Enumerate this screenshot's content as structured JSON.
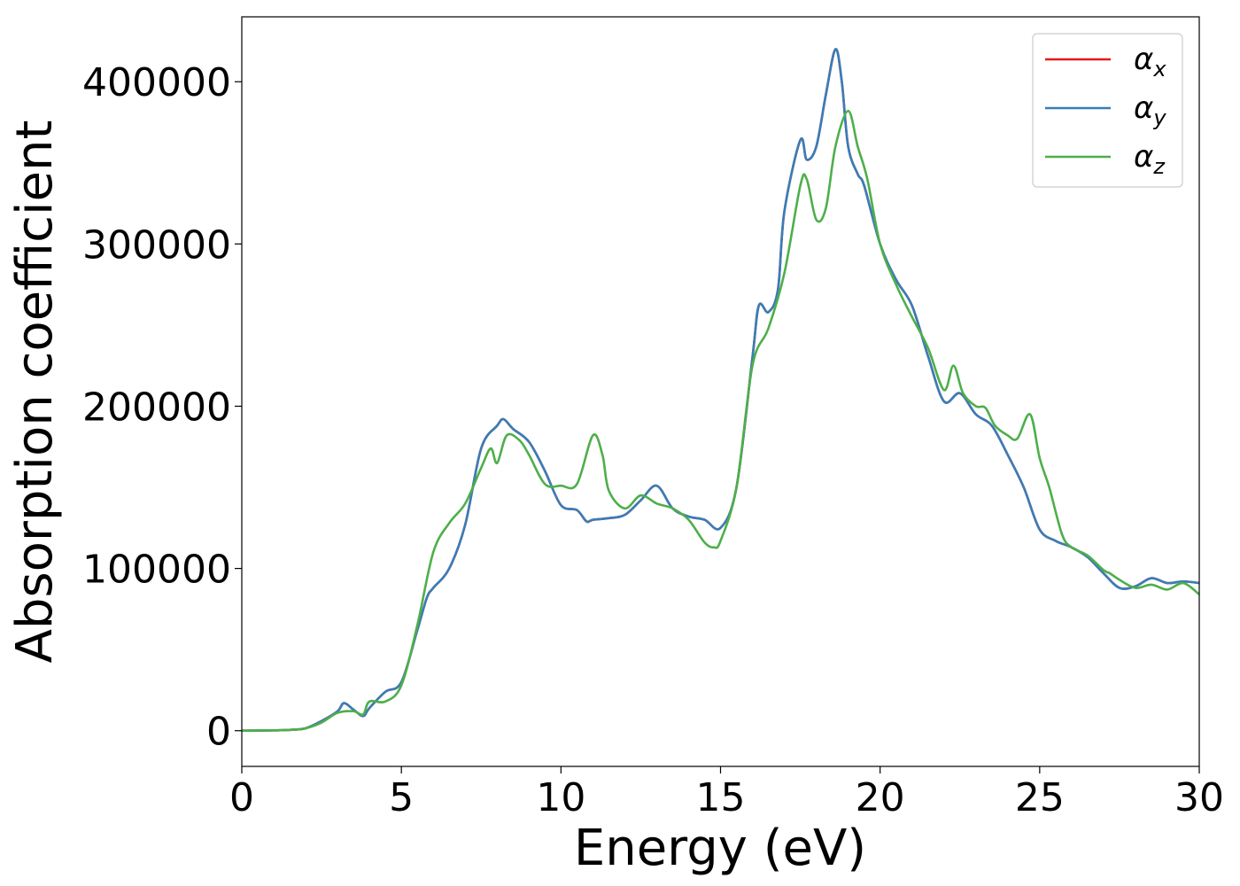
{
  "chart_data": {
    "type": "line",
    "title": "",
    "xlabel": "Energy (eV)",
    "ylabel": "Absorption coefficient",
    "xlim": [
      0,
      30
    ],
    "ylim": [
      -22000,
      440000
    ],
    "xticks": [
      0,
      5,
      10,
      15,
      20,
      25,
      30
    ],
    "xtick_labels": [
      "0",
      "5",
      "10",
      "15",
      "20",
      "25",
      "30"
    ],
    "yticks": [
      0,
      100000,
      200000,
      300000,
      400000
    ],
    "ytick_labels": [
      "0",
      "100000",
      "200000",
      "300000",
      "400000"
    ],
    "grid": false,
    "legend_position": "top-right",
    "series": [
      {
        "name": "α",
        "subscript": "x",
        "color": "#e41a1c",
        "x": [
          0,
          1,
          1.5,
          2,
          2.5,
          3,
          3.2,
          3.5,
          3.8,
          4,
          4.5,
          5,
          5.5,
          5.8,
          6,
          6.5,
          7,
          7.5,
          8,
          8.2,
          8.5,
          9,
          9.5,
          10,
          10.5,
          10.8,
          11,
          11.5,
          12,
          12.5,
          13,
          13.5,
          14,
          14.5,
          15,
          15.5,
          16,
          16.2,
          16.5,
          16.8,
          17,
          17.5,
          17.7,
          18,
          18.3,
          18.6,
          18.8,
          19,
          19.3,
          19.5,
          20,
          20.5,
          21,
          21.5,
          22,
          22.5,
          23,
          23.5,
          24,
          24.5,
          25,
          25.5,
          26,
          26.5,
          27,
          27.5,
          28,
          28.5,
          29,
          29.5,
          30
        ],
        "y": [
          0,
          200,
          500,
          1500,
          6000,
          12000,
          17000,
          13000,
          9000,
          14000,
          24000,
          30000,
          62000,
          82000,
          88000,
          100000,
          127000,
          174000,
          188000,
          192000,
          186000,
          178000,
          160000,
          139000,
          136000,
          129000,
          130000,
          131000,
          133000,
          142000,
          151000,
          137000,
          132000,
          130000,
          125000,
          150000,
          230000,
          262000,
          258000,
          272000,
          320000,
          364000,
          352000,
          360000,
          392000,
          420000,
          400000,
          360000,
          343000,
          336000,
          300000,
          278000,
          262000,
          231000,
          203000,
          208000,
          195000,
          188000,
          170000,
          150000,
          124000,
          117000,
          113000,
          107000,
          97000,
          88000,
          89000,
          94000,
          91000,
          92000,
          91000
        ]
      },
      {
        "name": "α",
        "subscript": "y",
        "color": "#377eb8",
        "x": [
          0,
          1,
          1.5,
          2,
          2.5,
          3,
          3.2,
          3.5,
          3.8,
          4,
          4.5,
          5,
          5.5,
          5.8,
          6,
          6.5,
          7,
          7.5,
          8,
          8.2,
          8.5,
          9,
          9.5,
          10,
          10.5,
          10.8,
          11,
          11.5,
          12,
          12.5,
          13,
          13.5,
          14,
          14.5,
          15,
          15.5,
          16,
          16.2,
          16.5,
          16.8,
          17,
          17.5,
          17.7,
          18,
          18.3,
          18.6,
          18.8,
          19,
          19.3,
          19.5,
          20,
          20.5,
          21,
          21.5,
          22,
          22.5,
          23,
          23.5,
          24,
          24.5,
          25,
          25.5,
          26,
          26.5,
          27,
          27.5,
          28,
          28.5,
          29,
          29.5,
          30
        ],
        "y": [
          0,
          200,
          500,
          1500,
          6000,
          12000,
          17000,
          13000,
          9000,
          14000,
          24000,
          30000,
          62000,
          82000,
          88000,
          100000,
          127000,
          174000,
          188000,
          192000,
          186000,
          178000,
          160000,
          139000,
          136000,
          129000,
          130000,
          131000,
          133000,
          142000,
          151000,
          137000,
          132000,
          130000,
          125000,
          150000,
          230000,
          262000,
          258000,
          272000,
          320000,
          364000,
          352000,
          360000,
          392000,
          420000,
          400000,
          360000,
          343000,
          336000,
          300000,
          278000,
          262000,
          231000,
          203000,
          208000,
          195000,
          188000,
          170000,
          150000,
          124000,
          117000,
          113000,
          107000,
          97000,
          88000,
          89000,
          94000,
          91000,
          92000,
          91000
        ]
      },
      {
        "name": "α",
        "subscript": "z",
        "color": "#4daf4a",
        "x": [
          0,
          1,
          1.5,
          2,
          2.5,
          3,
          3.5,
          3.8,
          4,
          4.5,
          5,
          5.5,
          6,
          6.5,
          7,
          7.5,
          7.8,
          8,
          8.3,
          8.7,
          9,
          9.5,
          10,
          10.5,
          11,
          11.3,
          11.5,
          12,
          12.5,
          13,
          13.5,
          14,
          14.5,
          14.8,
          15,
          15.5,
          16,
          16.5,
          17,
          17.5,
          17.7,
          18,
          18.3,
          18.6,
          19,
          19.3,
          19.6,
          20,
          20.5,
          21,
          21.5,
          22,
          22.3,
          22.6,
          23,
          23.3,
          23.6,
          24,
          24.3,
          24.7,
          25,
          25.3,
          25.7,
          26,
          26.5,
          27,
          27.2,
          27.5,
          28,
          28.5,
          29,
          29.5,
          30
        ],
        "y": [
          0,
          200,
          500,
          1500,
          5000,
          11000,
          12000,
          10000,
          18000,
          18000,
          28000,
          65000,
          110000,
          128000,
          140000,
          162000,
          174000,
          165000,
          182000,
          179000,
          170000,
          152000,
          151000,
          152000,
          182000,
          170000,
          148000,
          137000,
          145000,
          140000,
          137000,
          130000,
          116000,
          113000,
          117000,
          150000,
          225000,
          248000,
          282000,
          336000,
          340000,
          315000,
          322000,
          360000,
          382000,
          360000,
          340000,
          300000,
          275000,
          255000,
          236000,
          210000,
          225000,
          208000,
          200000,
          199000,
          188000,
          182000,
          180000,
          195000,
          168000,
          150000,
          121000,
          113000,
          108000,
          99000,
          97000,
          93000,
          88000,
          90000,
          87000,
          91000,
          84000
        ]
      }
    ]
  }
}
